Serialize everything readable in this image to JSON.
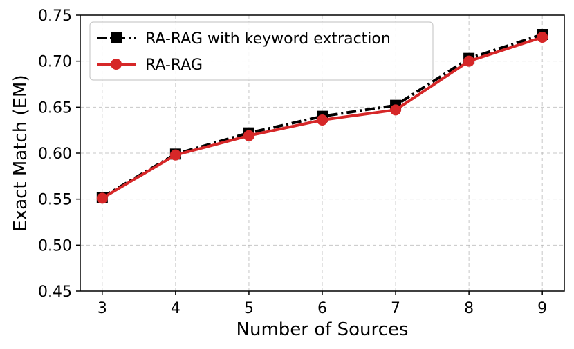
{
  "chart_data": {
    "type": "line",
    "xlabel": "Number of Sources",
    "ylabel": "Exact Match (EM)",
    "x": [
      3,
      4,
      5,
      6,
      7,
      8,
      9
    ],
    "xlim": [
      2.7,
      9.3
    ],
    "ylim": [
      0.45,
      0.75
    ],
    "yticks": [
      0.45,
      0.5,
      0.55,
      0.6,
      0.65,
      0.7,
      0.75
    ],
    "ytick_labels": [
      "0.45",
      "0.50",
      "0.55",
      "0.60",
      "0.65",
      "0.70",
      "0.75"
    ],
    "xtick_labels": [
      "3",
      "4",
      "5",
      "6",
      "7",
      "8",
      "9"
    ],
    "grid": true,
    "legend_position": "top-left",
    "series": [
      {
        "name": "RA-RAG with keyword extraction",
        "values": [
          0.552,
          0.599,
          0.622,
          0.64,
          0.652,
          0.703,
          0.729
        ],
        "color": "#000000",
        "marker": "square",
        "line_style": "dash-dot"
      },
      {
        "name": "RA-RAG",
        "values": [
          0.551,
          0.598,
          0.619,
          0.636,
          0.647,
          0.7,
          0.726
        ],
        "color": "#d62728",
        "marker": "circle",
        "line_style": "solid"
      }
    ]
  }
}
